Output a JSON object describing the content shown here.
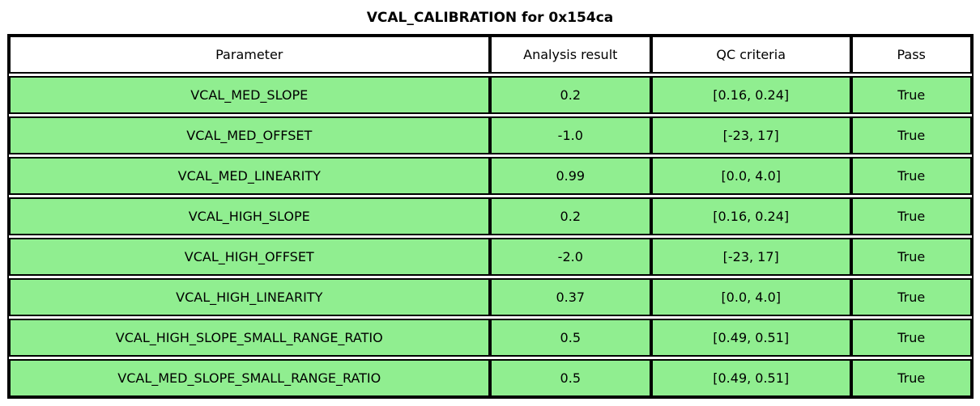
{
  "title": "VCAL_CALIBRATION for 0x154ca",
  "colors": {
    "pass_row_green": "#90ee90",
    "header_bg": "#ffffff",
    "border": "#000000",
    "text": "#000000"
  },
  "chart_data": {
    "type": "table",
    "title": "VCAL_CALIBRATION for 0x154ca",
    "columns": [
      "Parameter",
      "Analysis result",
      "QC criteria",
      "Pass"
    ],
    "rows": [
      [
        "VCAL_MED_SLOPE",
        "0.2",
        "[0.16, 0.24]",
        "True"
      ],
      [
        "VCAL_MED_OFFSET",
        "-1.0",
        "[-23, 17]",
        "True"
      ],
      [
        "VCAL_MED_LINEARITY",
        "0.99",
        "[0.0, 4.0]",
        "True"
      ],
      [
        "VCAL_HIGH_SLOPE",
        "0.2",
        "[0.16, 0.24]",
        "True"
      ],
      [
        "VCAL_HIGH_OFFSET",
        "-2.0",
        "[-23, 17]",
        "True"
      ],
      [
        "VCAL_HIGH_LINEARITY",
        "0.37",
        "[0.0, 4.0]",
        "True"
      ],
      [
        "VCAL_HIGH_SLOPE_SMALL_RANGE_RATIO",
        "0.5",
        "[0.49, 0.51]",
        "True"
      ],
      [
        "VCAL_MED_SLOPE_SMALL_RANGE_RATIO",
        "0.5",
        "[0.49, 0.51]",
        "True"
      ]
    ],
    "row_colors": [
      "#90ee90",
      "#90ee90",
      "#90ee90",
      "#90ee90",
      "#90ee90",
      "#90ee90",
      "#90ee90",
      "#90ee90"
    ],
    "legend_position": "none",
    "grid": false
  }
}
